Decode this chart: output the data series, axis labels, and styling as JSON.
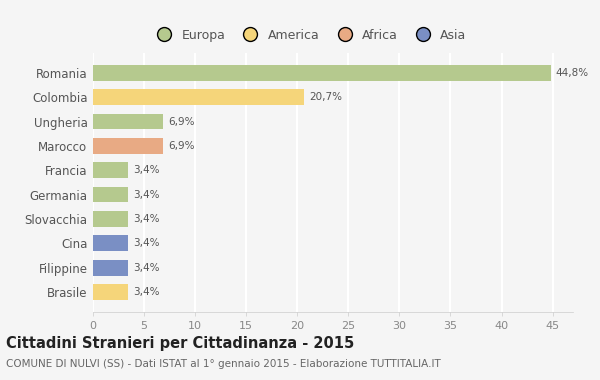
{
  "categories": [
    "Romania",
    "Colombia",
    "Ungheria",
    "Marocco",
    "Francia",
    "Germania",
    "Slovacchia",
    "Cina",
    "Filippine",
    "Brasile"
  ],
  "values": [
    44.8,
    20.7,
    6.9,
    6.9,
    3.4,
    3.4,
    3.4,
    3.4,
    3.4,
    3.4
  ],
  "labels": [
    "44,8%",
    "20,7%",
    "6,9%",
    "6,9%",
    "3,4%",
    "3,4%",
    "3,4%",
    "3,4%",
    "3,4%",
    "3,4%"
  ],
  "colors": [
    "#b5c98e",
    "#f5d57a",
    "#b5c98e",
    "#e8aa84",
    "#b5c98e",
    "#b5c98e",
    "#b5c98e",
    "#7a8fc4",
    "#7a8fc4",
    "#f5d57a"
  ],
  "legend_labels": [
    "Europa",
    "America",
    "Africa",
    "Asia"
  ],
  "legend_colors": [
    "#b5c98e",
    "#f5d57a",
    "#e8aa84",
    "#7a8fc4"
  ],
  "title": "Cittadini Stranieri per Cittadinanza - 2015",
  "subtitle": "COMUNE DI NULVI (SS) - Dati ISTAT al 1° gennaio 2015 - Elaborazione TUTTITALIA.IT",
  "xlim": [
    0,
    47
  ],
  "xticks": [
    0,
    5,
    10,
    15,
    20,
    25,
    30,
    35,
    40,
    45
  ],
  "background_color": "#f5f5f5",
  "grid_color": "#ffffff",
  "bar_height": 0.65
}
